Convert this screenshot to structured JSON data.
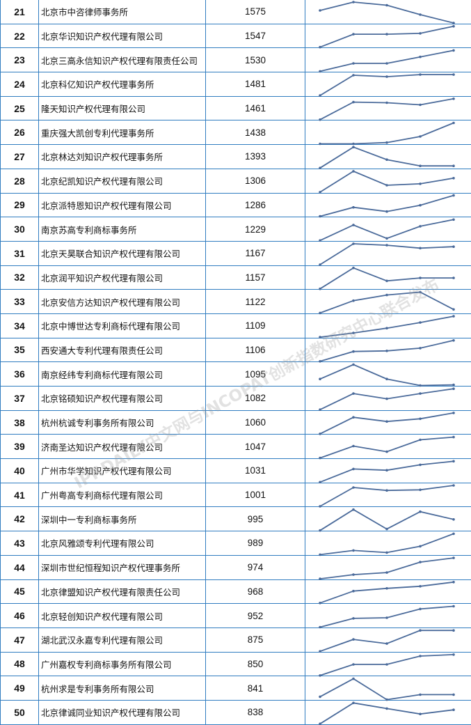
{
  "colors": {
    "border": "#2f7cc0",
    "sparkline": "#4a6a9a"
  },
  "watermark": "IPRDAILY中文网与INCOPAT创新指数研究中心联合发布",
  "rows": [
    {
      "rank": "21",
      "name": "北京市中咨律师事务所",
      "value": "1575",
      "trend": [
        0.6,
        1,
        0.85,
        0.4,
        0
      ]
    },
    {
      "rank": "22",
      "name": "北京华识知识产权代理有限公司",
      "value": "1547",
      "trend": [
        0,
        0.62,
        0.62,
        0.66,
        1
      ]
    },
    {
      "rank": "23",
      "name": "北京三高永信知识产权代理有限责任公司",
      "value": "1530",
      "trend": [
        0,
        0.38,
        0.38,
        0.69,
        1
      ]
    },
    {
      "rank": "24",
      "name": "北京科亿知识产权代理事务所",
      "value": "1481",
      "trend": [
        0,
        0.97,
        0.9,
        1,
        1
      ]
    },
    {
      "rank": "25",
      "name": "隆天知识产权代理有限公司",
      "value": "1461",
      "trend": [
        0,
        0.84,
        0.81,
        0.71,
        1
      ]
    },
    {
      "rank": "26",
      "name": "重庆强大凯创专利代理事务所",
      "value": "1438",
      "trend": [
        0,
        0,
        0.06,
        0.35,
        1
      ]
    },
    {
      "rank": "27",
      "name": "北京林达刘知识产权代理事务所",
      "value": "1393",
      "trend": [
        0,
        1,
        0.4,
        0.1,
        0.1
      ]
    },
    {
      "rank": "28",
      "name": "北京纪凯知识产权代理有限公司",
      "value": "1306",
      "trend": [
        0,
        1,
        0.33,
        0.4,
        0.67
      ]
    },
    {
      "rank": "29",
      "name": "北京派特恩知识产权代理有限公司",
      "value": "1286",
      "trend": [
        0,
        0.43,
        0.23,
        0.53,
        1
      ]
    },
    {
      "rank": "30",
      "name": "南京苏高专利商标事务所",
      "value": "1229",
      "trend": [
        0,
        0.74,
        0.1,
        0.68,
        1
      ]
    },
    {
      "rank": "31",
      "name": "北京天昊联合知识产权代理有限公司",
      "value": "1167",
      "trend": [
        0,
        1,
        0.93,
        0.79,
        0.86
      ]
    },
    {
      "rank": "32",
      "name": "北京润平知识产权代理有限公司",
      "value": "1157",
      "trend": [
        0,
        1,
        0.38,
        0.52,
        0.52
      ]
    },
    {
      "rank": "33",
      "name": "北京安信方达知识产权代理有限公司",
      "value": "1122",
      "trend": [
        0,
        0.59,
        0.86,
        1,
        0.17
      ]
    },
    {
      "rank": "34",
      "name": "北京中博世达专利商标代理有限公司",
      "value": "1109",
      "trend": [
        0,
        0.2,
        0.43,
        0.7,
        1
      ]
    },
    {
      "rank": "35",
      "name": "西安通大专利代理有限责任公司",
      "value": "1106",
      "trend": [
        0,
        0.47,
        0.5,
        0.63,
        1
      ]
    },
    {
      "rank": "36",
      "name": "南京经纬专利商标代理有限公司",
      "value": "1095",
      "trend": [
        0.31,
        1,
        0.31,
        0,
        0.03
      ]
    },
    {
      "rank": "37",
      "name": "北京铭硕知识产权代理有限公司",
      "value": "1082",
      "trend": [
        0,
        0.77,
        0.52,
        0.77,
        1
      ]
    },
    {
      "rank": "38",
      "name": "杭州杭诚专利事务所有限公司",
      "value": "1060",
      "trend": [
        0,
        0.79,
        0.59,
        0.72,
        1
      ]
    },
    {
      "rank": "39",
      "name": "济南圣达知识产权代理有限公司",
      "value": "1047",
      "trend": [
        0,
        0.57,
        0.3,
        0.87,
        1
      ]
    },
    {
      "rank": "40",
      "name": "广州市华学知识产权代理有限公司",
      "value": "1031",
      "trend": [
        0,
        0.63,
        0.57,
        0.83,
        1
      ]
    },
    {
      "rank": "41",
      "name": "广州粤高专利商标代理有限公司",
      "value": "1001",
      "trend": [
        0,
        0.9,
        0.76,
        0.79,
        1
      ]
    },
    {
      "rank": "42",
      "name": "深圳中一专利商标事务所",
      "value": "995",
      "trend": [
        0,
        1,
        0.07,
        0.9,
        0.53
      ]
    },
    {
      "rank": "43",
      "name": "北京风雅颂专利代理有限公司",
      "value": "989",
      "trend": [
        0,
        0.2,
        0.1,
        0.4,
        1
      ]
    },
    {
      "rank": "44",
      "name": "深圳市世纪恒程知识产权代理事务所",
      "value": "974",
      "trend": [
        0,
        0.2,
        0.3,
        0.8,
        1
      ]
    },
    {
      "rank": "45",
      "name": "北京律盟知识产权代理有限责任公司",
      "value": "968",
      "trend": [
        0,
        0.57,
        0.7,
        0.8,
        1
      ]
    },
    {
      "rank": "46",
      "name": "北京轻创知识产权代理有限公司",
      "value": "952",
      "trend": [
        0,
        0.42,
        0.45,
        0.87,
        1
      ]
    },
    {
      "rank": "47",
      "name": "湖北武汉永嘉专利代理有限公司",
      "value": "875",
      "trend": [
        0,
        0.57,
        0.37,
        1,
        1
      ]
    },
    {
      "rank": "48",
      "name": "广州嘉权专利商标事务所有限公司",
      "value": "850",
      "trend": [
        0,
        0.53,
        0.53,
        0.93,
        1
      ]
    },
    {
      "rank": "49",
      "name": "杭州求是专利事务所有限公司",
      "value": "841",
      "trend": [
        0.14,
        1,
        0,
        0.24,
        0.24
      ]
    },
    {
      "rank": "50",
      "name": "北京律诚同业知识产权代理有限公司",
      "value": "838",
      "trend": [
        0,
        1,
        0.73,
        0.47,
        0.67
      ]
    }
  ]
}
